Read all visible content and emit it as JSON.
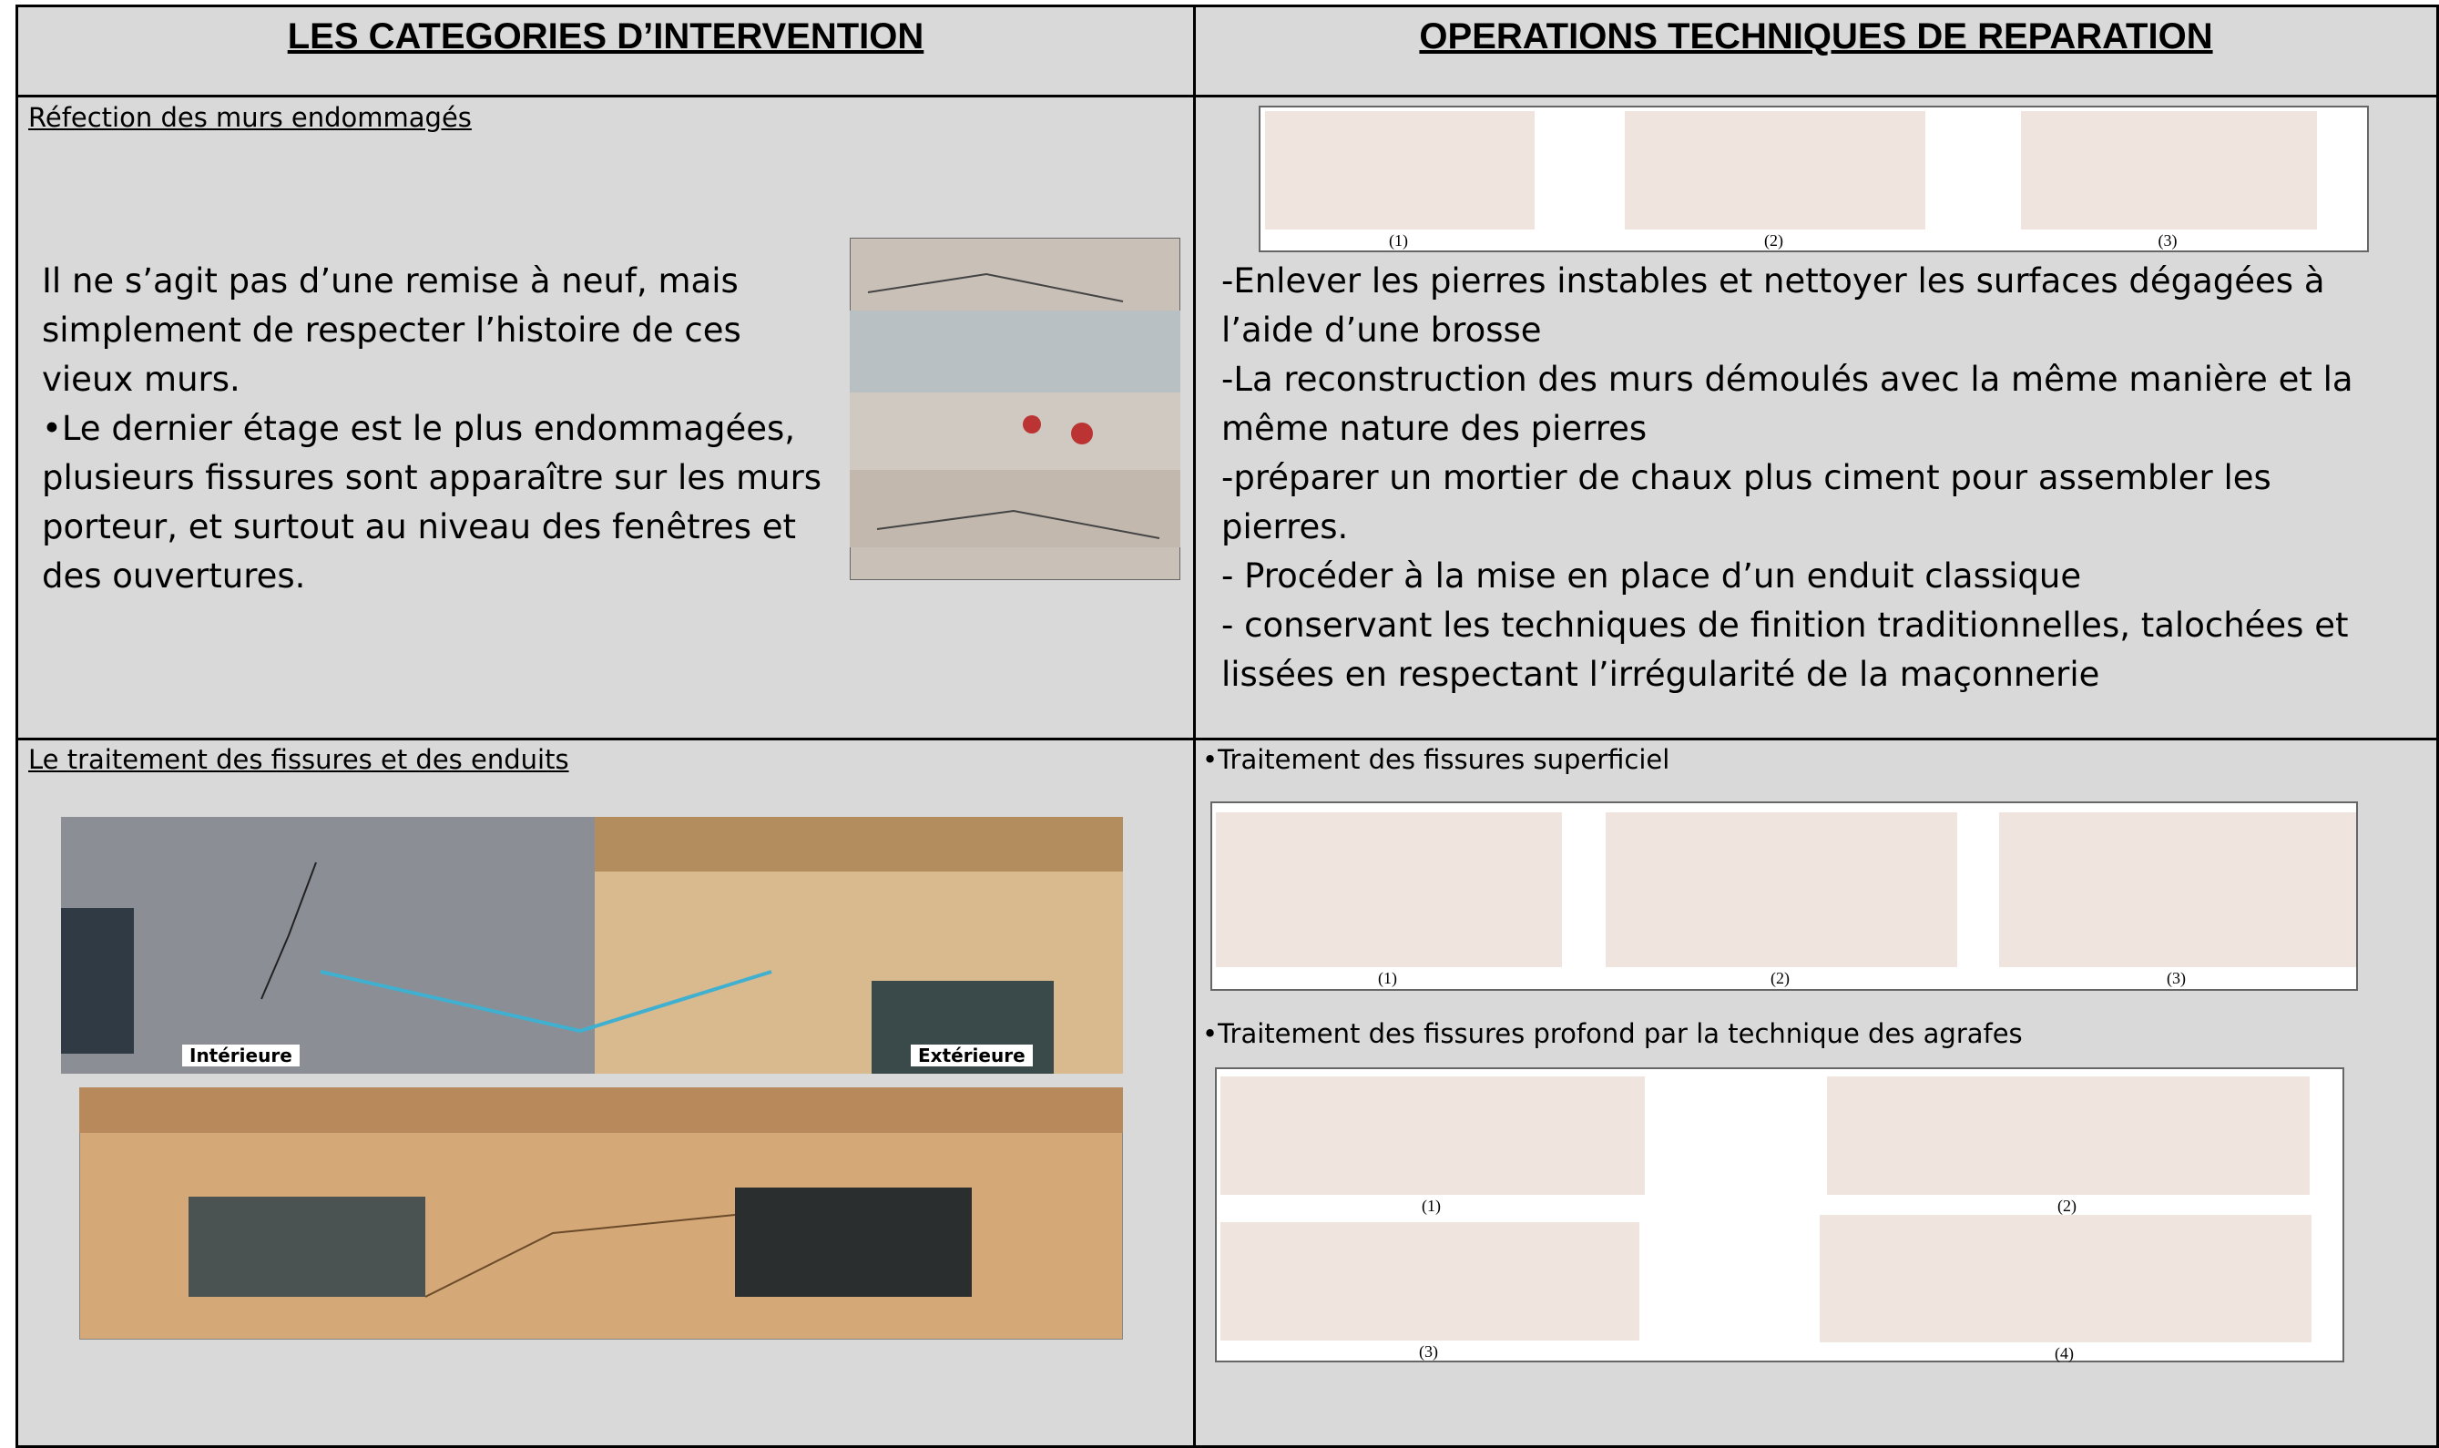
{
  "header": {
    "columns": [
      "LES CATEGORIES D’INTERVENTION",
      "OPERATIONS TECHNIQUES DE REPARATION"
    ]
  },
  "rows": [
    {
      "category": {
        "title": "Réfection des murs endommagés",
        "paragraphs": [
          "Il ne s’agit pas d’une remise à neuf, mais simplement de respecter l’histoire de ces vieux murs.",
          "•Le dernier étage est le plus endommagées, plusieurs fissures sont apparaître sur les murs porteur, et surtout au niveau des fenêtres et des ouvertures."
        ]
      },
      "operations": {
        "figure_labels": [
          "(1)",
          "(2)",
          "(3)"
        ],
        "paragraphs": [
          "-Enlever les pierres instables et nettoyer les surfaces dégagées à l’aide d’une brosse",
          "-La reconstruction des murs démoulés avec la même manière et la même nature des pierres",
          "-préparer un mortier de chaux plus ciment pour assembler les pierres.",
          "- Procéder à la mise en place d’un enduit classique",
          "- conservant les techniques de finition traditionnelles, talochées et lissées en respectant l’irrégularité de la maçonnerie"
        ]
      }
    },
    {
      "category": {
        "title": "Le traitement des fissures et des enduits",
        "photo_labels": [
          "Intérieure",
          "Extérieure"
        ]
      },
      "operations": {
        "sections": [
          {
            "title": "•Traitement des fissures superficiel",
            "figure_labels": [
              "(1)",
              "(2)",
              "(3)"
            ]
          },
          {
            "title": "•Traitement des fissures profond par la technique des agrafes",
            "figure_labels": [
              "(1)",
              "(2)",
              "(3)",
              "(4)"
            ]
          }
        ]
      }
    }
  ]
}
